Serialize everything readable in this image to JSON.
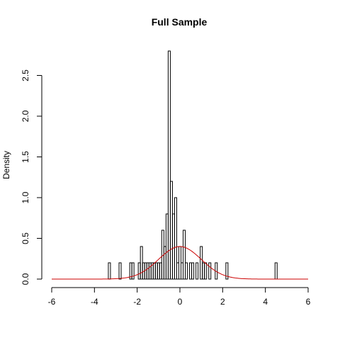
{
  "chart_data": {
    "type": "bar",
    "subtype": "histogram-with-density-curve",
    "title": "Full Sample",
    "xlabel": "",
    "ylabel": "Density",
    "xlim": [
      -6,
      6
    ],
    "ylim": [
      0,
      2.8
    ],
    "xticks": [
      "-6",
      "-4",
      "-2",
      "0",
      "2",
      "4",
      "6"
    ],
    "xtick_values": [
      -6,
      -4,
      -2,
      0,
      2,
      4,
      6
    ],
    "yticks": [
      "0.0",
      "0.5",
      "1.0",
      "1.5",
      "2.0",
      "2.5"
    ],
    "ytick_values": [
      0,
      0.5,
      1.0,
      1.5,
      2.0,
      2.5
    ],
    "grid": false,
    "bin_width": 0.1,
    "bars": [
      {
        "x": -3.3,
        "y": 0.2
      },
      {
        "x": -2.8,
        "y": 0.2
      },
      {
        "x": -2.3,
        "y": 0.2
      },
      {
        "x": -2.2,
        "y": 0.2
      },
      {
        "x": -1.9,
        "y": 0.2
      },
      {
        "x": -1.8,
        "y": 0.4
      },
      {
        "x": -1.7,
        "y": 0.2
      },
      {
        "x": -1.6,
        "y": 0.2
      },
      {
        "x": -1.5,
        "y": 0.2
      },
      {
        "x": -1.4,
        "y": 0.2
      },
      {
        "x": -1.3,
        "y": 0.2
      },
      {
        "x": -1.2,
        "y": 0.2
      },
      {
        "x": -1.1,
        "y": 0.2
      },
      {
        "x": -1.0,
        "y": 0.2
      },
      {
        "x": -0.9,
        "y": 0.2
      },
      {
        "x": -0.8,
        "y": 0.6
      },
      {
        "x": -0.7,
        "y": 0.4
      },
      {
        "x": -0.6,
        "y": 0.8
      },
      {
        "x": -0.5,
        "y": 2.8
      },
      {
        "x": -0.4,
        "y": 1.2
      },
      {
        "x": -0.3,
        "y": 0.8
      },
      {
        "x": -0.2,
        "y": 1.0
      },
      {
        "x": -0.1,
        "y": 0.2
      },
      {
        "x": 0.0,
        "y": 0.4
      },
      {
        "x": 0.1,
        "y": 0.2
      },
      {
        "x": 0.2,
        "y": 0.6
      },
      {
        "x": 0.3,
        "y": 0.2
      },
      {
        "x": 0.5,
        "y": 0.2
      },
      {
        "x": 0.6,
        "y": 0.2
      },
      {
        "x": 0.8,
        "y": 0.2
      },
      {
        "x": 1.0,
        "y": 0.4
      },
      {
        "x": 1.1,
        "y": 0.2
      },
      {
        "x": 1.2,
        "y": 0.2
      },
      {
        "x": 1.4,
        "y": 0.2
      },
      {
        "x": 1.7,
        "y": 0.2
      },
      {
        "x": 2.2,
        "y": 0.2
      },
      {
        "x": 4.5,
        "y": 0.2
      }
    ],
    "series": [
      {
        "type": "line",
        "color": "#cc0000",
        "values": "normal density, mean 0, sd 1"
      }
    ],
    "colors": {
      "bars": "#000000",
      "curve": "#cc0000"
    }
  }
}
